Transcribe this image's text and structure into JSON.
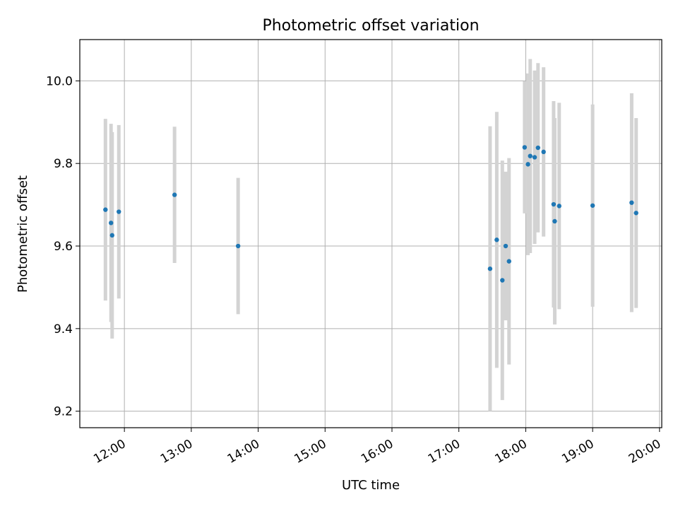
{
  "chart_data": {
    "type": "scatter",
    "title": "Photometric offset variation",
    "xlabel": "UTC time",
    "ylabel": "Photometric offset",
    "x_tick_labels": [
      "12:00",
      "13:00",
      "14:00",
      "15:00",
      "16:00",
      "17:00",
      "18:00",
      "19:00",
      "20:00"
    ],
    "y_tick_labels": [
      "9.2",
      "9.4",
      "9.6",
      "9.8",
      "10.0"
    ],
    "xlim": [
      "11:20",
      "20:02"
    ],
    "ylim": [
      9.16,
      10.1
    ],
    "grid": true,
    "colors": {
      "point": "#1f77b4",
      "errorbar": "#d3d3d3",
      "grid": "#b0b0b0"
    },
    "points": [
      {
        "time": "11:43",
        "value": 9.688,
        "err": 0.22
      },
      {
        "time": "11:48",
        "value": 9.656,
        "err": 0.24
      },
      {
        "time": "11:49",
        "value": 9.626,
        "err": 0.25
      },
      {
        "time": "11:55",
        "value": 9.683,
        "err": 0.21
      },
      {
        "time": "12:45",
        "value": 9.724,
        "err": 0.165
      },
      {
        "time": "13:42",
        "value": 9.6,
        "err": 0.165
      },
      {
        "time": "17:28",
        "value": 9.545,
        "err": 0.345
      },
      {
        "time": "17:34",
        "value": 9.615,
        "err": 0.31
      },
      {
        "time": "17:39",
        "value": 9.517,
        "err": 0.29
      },
      {
        "time": "17:42",
        "value": 9.6,
        "err": 0.18
      },
      {
        "time": "17:45",
        "value": 9.563,
        "err": 0.25
      },
      {
        "time": "17:59",
        "value": 9.839,
        "err": 0.16
      },
      {
        "time": "18:02",
        "value": 9.798,
        "err": 0.22
      },
      {
        "time": "18:04",
        "value": 9.818,
        "err": 0.235
      },
      {
        "time": "18:08",
        "value": 9.815,
        "err": 0.21
      },
      {
        "time": "18:11",
        "value": 9.838,
        "err": 0.205
      },
      {
        "time": "18:16",
        "value": 9.828,
        "err": 0.205
      },
      {
        "time": "18:25",
        "value": 9.701,
        "err": 0.25
      },
      {
        "time": "18:26",
        "value": 9.66,
        "err": 0.25
      },
      {
        "time": "18:30",
        "value": 9.697,
        "err": 0.25
      },
      {
        "time": "19:00",
        "value": 9.698,
        "err": 0.245
      },
      {
        "time": "19:35",
        "value": 9.705,
        "err": 0.265
      },
      {
        "time": "19:39",
        "value": 9.68,
        "err": 0.23
      }
    ]
  }
}
